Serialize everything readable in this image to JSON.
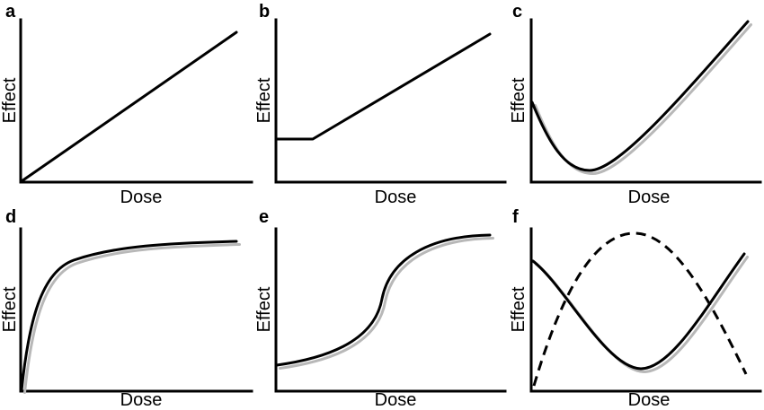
{
  "panels": [
    {
      "letter": "a",
      "xlabel": "Dose",
      "ylabel": "Effect",
      "curve": "linear"
    },
    {
      "letter": "b",
      "xlabel": "Dose",
      "ylabel": "Effect",
      "curve": "threshold"
    },
    {
      "letter": "c",
      "xlabel": "Dose",
      "ylabel": "Effect",
      "curve": "j-shaped"
    },
    {
      "letter": "d",
      "xlabel": "Dose",
      "ylabel": "Effect",
      "curve": "saturating"
    },
    {
      "letter": "e",
      "xlabel": "Dose",
      "ylabel": "Effect",
      "curve": "biphasic-sigmoid"
    },
    {
      "letter": "f",
      "xlabel": "Dose",
      "ylabel": "Effect",
      "curve": "u-shaped-and-inverted-u"
    }
  ],
  "colors": {
    "line": "#000000",
    "background": "#ffffff"
  }
}
